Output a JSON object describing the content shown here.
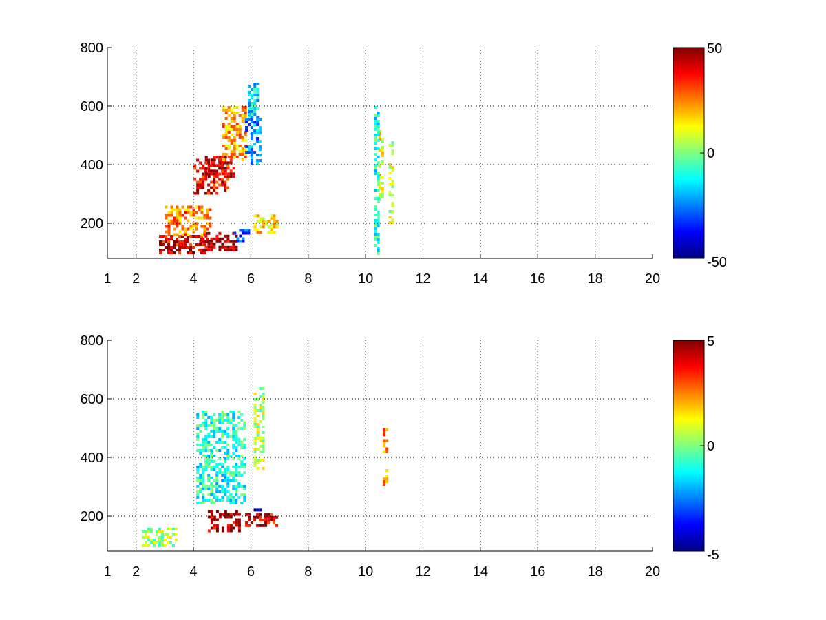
{
  "chart_data": [
    {
      "type": "heatmap",
      "title": "",
      "xlabel": "",
      "ylabel": "",
      "x_scale": "linear",
      "xlim": [
        1,
        20
      ],
      "ylim": [
        80,
        800
      ],
      "xticks": [
        1,
        2,
        4,
        6,
        8,
        10,
        12,
        14,
        16,
        18,
        20
      ],
      "yticks": [
        200,
        400,
        600,
        800
      ],
      "grid": true,
      "colormap": "jet",
      "colorbar": {
        "min": -50,
        "max": 50,
        "ticks": [
          -50,
          0,
          50
        ]
      },
      "x_tick_labels": [
        "1",
        "2",
        "4",
        "6",
        "8",
        "10",
        "12",
        "14",
        "16",
        "18",
        "20"
      ],
      "y_tick_labels": [
        "200",
        "400",
        "600",
        "800"
      ],
      "colorbar_tick_labels": [
        "-50",
        "0",
        "50"
      ],
      "regions": [
        {
          "x": [
            4.0,
            5.2
          ],
          "y": [
            300,
            420
          ],
          "value": 38
        },
        {
          "x": [
            4.4,
            5.4
          ],
          "y": [
            360,
            430
          ],
          "value": 44
        },
        {
          "x": [
            2.8,
            4.5
          ],
          "y": [
            100,
            160
          ],
          "value": 40
        },
        {
          "x": [
            4.2,
            5.5
          ],
          "y": [
            110,
            170
          ],
          "value": 45
        },
        {
          "x": [
            3.0,
            4.6
          ],
          "y": [
            160,
            260
          ],
          "value": 25
        },
        {
          "x": [
            5.0,
            5.8
          ],
          "y": [
            420,
            600
          ],
          "value": 22
        },
        {
          "x": [
            5.8,
            6.3
          ],
          "y": [
            400,
            560
          ],
          "value": -25
        },
        {
          "x": [
            5.9,
            6.2
          ],
          "y": [
            560,
            680
          ],
          "value": -15
        },
        {
          "x": [
            5.4,
            5.9
          ],
          "y": [
            140,
            180
          ],
          "value": -30
        },
        {
          "x": [
            6.1,
            6.9
          ],
          "y": [
            170,
            230
          ],
          "value": 15
        },
        {
          "x": [
            10.45,
            10.55
          ],
          "y": [
            280,
            520
          ],
          "value": 12
        },
        {
          "x": [
            10.8,
            10.9
          ],
          "y": [
            200,
            480
          ],
          "value": 8
        },
        {
          "x": [
            10.3,
            10.4
          ],
          "y": [
            100,
            600
          ],
          "value": -10
        }
      ]
    },
    {
      "type": "heatmap",
      "title": "",
      "xlabel": "",
      "ylabel": "",
      "x_scale": "linear",
      "xlim": [
        1,
        20
      ],
      "ylim": [
        80,
        800
      ],
      "xticks": [
        1,
        2,
        4,
        6,
        8,
        10,
        12,
        14,
        16,
        18,
        20
      ],
      "yticks": [
        200,
        400,
        600,
        800
      ],
      "grid": true,
      "colormap": "jet",
      "colorbar": {
        "min": -5,
        "max": 5,
        "ticks": [
          -5,
          0,
          5
        ]
      },
      "x_tick_labels": [
        "1",
        "2",
        "4",
        "6",
        "8",
        "10",
        "12",
        "14",
        "16",
        "18",
        "20"
      ],
      "y_tick_labels": [
        "200",
        "400",
        "600",
        "800"
      ],
      "colorbar_tick_labels": [
        "-5",
        "0",
        "5"
      ],
      "regions": [
        {
          "x": [
            4.5,
            5.6
          ],
          "y": [
            150,
            220
          ],
          "value": 4.5
        },
        {
          "x": [
            5.8,
            6.9
          ],
          "y": [
            170,
            210
          ],
          "value": 4.0
        },
        {
          "x": [
            6.1,
            6.3
          ],
          "y": [
            210,
            225
          ],
          "value": -5.0
        },
        {
          "x": [
            4.1,
            5.8
          ],
          "y": [
            240,
            560
          ],
          "value": -1.0
        },
        {
          "x": [
            6.1,
            6.4
          ],
          "y": [
            360,
            640
          ],
          "value": 0.5
        },
        {
          "x": [
            2.2,
            3.4
          ],
          "y": [
            100,
            160
          ],
          "value": 0.3
        },
        {
          "x": [
            10.6,
            10.7
          ],
          "y": [
            420,
            500
          ],
          "value": 2.5
        },
        {
          "x": [
            10.6,
            10.7
          ],
          "y": [
            310,
            360
          ],
          "value": 2.0
        }
      ]
    }
  ]
}
